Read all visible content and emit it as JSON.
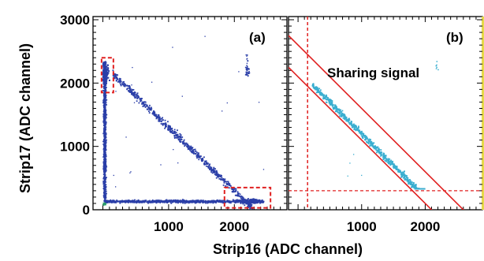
{
  "chart_data": [
    {
      "type": "scatter",
      "panel_label": "(a)",
      "xlabel": "Strip16 (ADC channel)",
      "ylabel": "Strip17 (ADC channel)",
      "xlim": [
        -150,
        2800
      ],
      "ylim": [
        0,
        3050
      ],
      "x_ticks": [
        1000,
        2000
      ],
      "y_ticks": [
        0,
        1000,
        2000,
        3000
      ],
      "marker_color": "#2b3fa8",
      "series": [
        {
          "kind": "vertical-band",
          "x": [
            30,
            30
          ],
          "y": [
            120,
            2350
          ],
          "values": "x≈30, y from 120 to 2350"
        },
        {
          "kind": "horizontal-band",
          "x": [
            30,
            2450
          ],
          "y": [
            130,
            130
          ],
          "values": "y≈130, x from 30 to 2450"
        },
        {
          "kind": "diagonal-band",
          "x": [
            150,
            2300
          ],
          "y": [
            2150,
            150
          ],
          "values": "x+y≈2300"
        },
        {
          "kind": "cluster",
          "x": [
            2200,
            2200
          ],
          "y": [
            2200,
            2200
          ],
          "values": "cluster near (2200, 2200)"
        }
      ],
      "highlight_boxes_data": [
        {
          "x": [
            -20,
            160
          ],
          "y": [
            1850,
            2400
          ]
        },
        {
          "x": [
            1850,
            2550
          ],
          "y": [
            30,
            350
          ]
        }
      ]
    },
    {
      "type": "scatter",
      "panel_label": "(b)",
      "annotation": "Sharing signal",
      "xlabel": "Strip16 (ADC channel)",
      "xlim": [
        -150,
        2900
      ],
      "ylim": [
        0,
        3050
      ],
      "x_ticks": [
        1000,
        2000
      ],
      "marker_color": "#3aaed0",
      "series": [
        {
          "kind": "diagonal-band",
          "x": [
            230,
            2000
          ],
          "y": [
            2000,
            400
          ],
          "values": "x+y≈2300, sharing events"
        },
        {
          "kind": "cluster",
          "x": [
            2180,
            2180
          ],
          "y": [
            2250,
            2250
          ],
          "values": "sparse points near (2180, 2250)"
        }
      ],
      "cut_lines": [
        {
          "x": [
            -150,
            2900
          ],
          "y": [
            2750,
            -300
          ]
        },
        {
          "x": [
            -150,
            2900
          ],
          "y": [
            2250,
            -800
          ]
        }
      ],
      "threshold_lines": {
        "x": 150,
        "y": 300
      }
    }
  ]
}
